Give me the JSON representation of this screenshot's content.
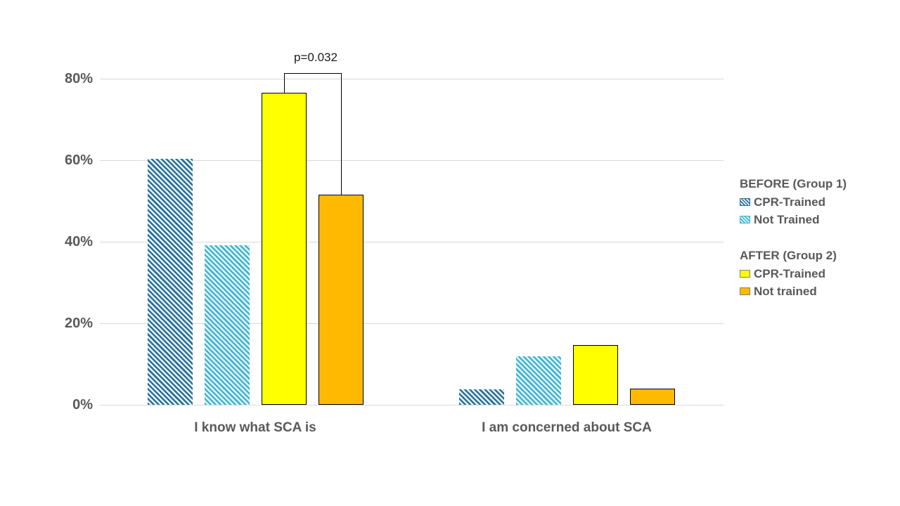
{
  "chart_data": {
    "type": "bar",
    "title": "",
    "categories": [
      "I know what SCA is",
      "I am concerned about SCA"
    ],
    "series": [
      {
        "name": "BEFORE (Group 1) - CPR-Trained",
        "legend_label": "CPR-Trained",
        "pattern": "diagonal-hatch",
        "stripe_color": "#2B6F9B",
        "pattern_bg": "#E9F6FB",
        "values": [
          60.3,
          3.8
        ]
      },
      {
        "name": "BEFORE (Group 1) - Not Trained",
        "legend_label": "Not Trained",
        "pattern": "diagonal-hatch",
        "stripe_color": "#43B2D3",
        "pattern_bg": "#E2F6FA",
        "values": [
          39.2,
          11.9
        ]
      },
      {
        "name": "AFTER (Group 2) - CPR-Trained",
        "legend_label": "CPR-Trained",
        "pattern": "solid",
        "fill": "#FFFF00",
        "border_color": "#000000",
        "values": [
          76.6,
          14.7
        ]
      },
      {
        "name": "AFTER (Group 2) - Not trained",
        "legend_label": "Not trained",
        "pattern": "solid",
        "fill": "#FFB900",
        "border_color": "#000000",
        "values": [
          51.5,
          4.0
        ]
      }
    ],
    "y_axis": {
      "ticks": [
        "0%",
        "20%",
        "40%",
        "60%",
        "80%"
      ],
      "tick_values": [
        0,
        20,
        40,
        60,
        80
      ],
      "unit": "percent"
    },
    "ylim": [
      0,
      85
    ],
    "grid": true,
    "legend": {
      "position": "right",
      "groups": [
        {
          "heading": "BEFORE (Group 1)",
          "items": [
            {
              "label": "CPR-Trained",
              "series_index": 0
            },
            {
              "label": "Not Trained",
              "series_index": 1
            }
          ]
        },
        {
          "heading": "AFTER (Group 2)",
          "items": [
            {
              "label": "CPR-Trained",
              "series_index": 2
            },
            {
              "label": "Not trained",
              "series_index": 3
            }
          ]
        }
      ]
    },
    "annotation": {
      "label": "p=0.032",
      "category_index": 0,
      "between_series": [
        2,
        3
      ]
    }
  },
  "colors": {
    "axis_text": "#595959",
    "gridline": "#D9D9D9",
    "annotation_text": "#1A1A1A",
    "background": "#FFFFFF"
  }
}
